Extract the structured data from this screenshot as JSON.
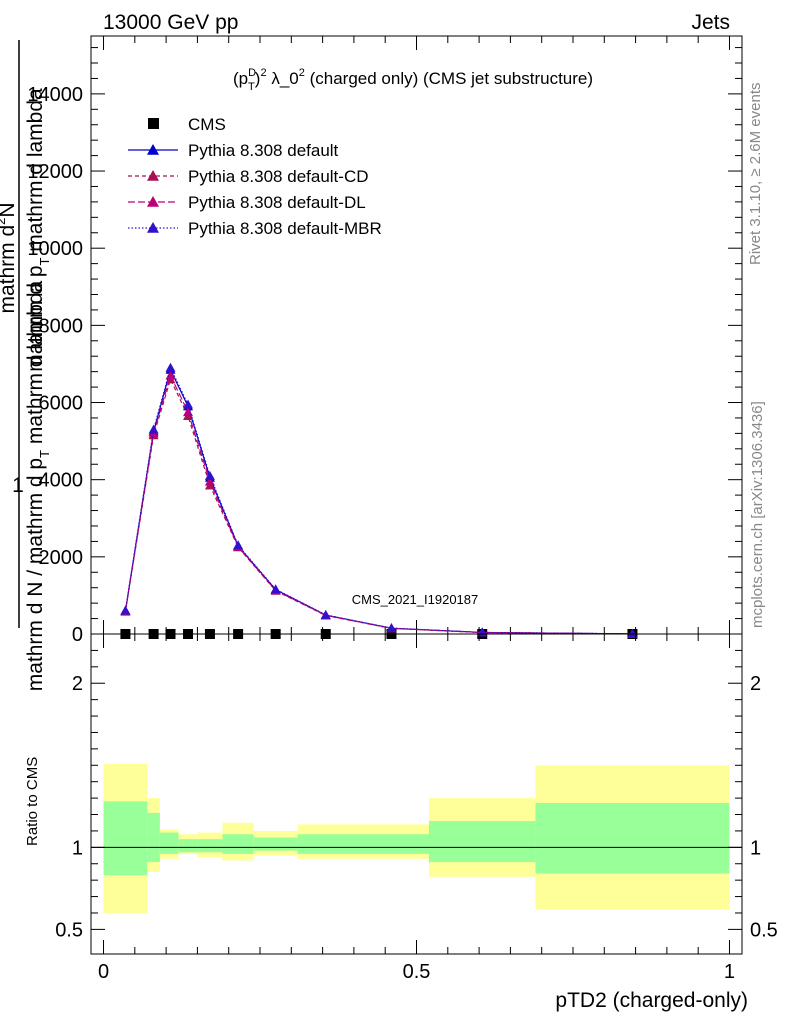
{
  "header": {
    "left": "13000 GeV pp",
    "right": "Jets"
  },
  "title": {
    "prefix": "(p",
    "sup_d": "D",
    "sub_t": "T",
    "sup_2": "2",
    "rest": "λ_0",
    "sup_2b": "2",
    "suffix": "(charged only) (CMS jet substructure)"
  },
  "ylabel": {
    "one": "1",
    "left_line": "mathrm d N / mathrm d p_T mathrm d lambda",
    "right_line": "mathrm d^2N / mathrm d p_T mathrm d lambda",
    "right_line_pre": "mathrm d",
    "right_line_sup": "2",
    "right_line_post": "N",
    "right_line2": "mathrm d p_T mathrm d lambda",
    "line_a": "mathrm d",
    "line_a_sup": "2",
    "line_a_post": "N",
    "line_b": "mathrm d p",
    "line_b_sub": "T",
    "line_b_post": " mathrm d lambda",
    "left_full": "mathrm d N / mathrm d p",
    "left_full_sub": "T",
    "left_full_post": " mathrm d lambda"
  },
  "watermark": "CMS_2021_I1920187",
  "side_labels": {
    "rivet": "Rivet 3.1.10, ≥ 2.6M events",
    "mcplots": "mcplots.cern.ch [arXiv:1306.3436]"
  },
  "ratio_ylabel": "Ratio to CMS",
  "xlabel": "pTD2 (charged-only)",
  "colors": {
    "default": "#0000cc",
    "cd": "#aa1155",
    "dl": "#bb0077",
    "mbr": "#3311cc",
    "band_inner": "#99ff99",
    "band_outer": "#ffff99"
  },
  "chart_data": {
    "type": "line",
    "x": [
      0.035,
      0.08,
      0.107,
      0.135,
      0.17,
      0.215,
      0.275,
      0.355,
      0.46,
      0.605,
      0.845
    ],
    "xlim": [
      -0.02,
      1.02
    ],
    "ylim": [
      0,
      15500
    ],
    "ratio_ylim": [
      0.35,
      2.3
    ],
    "x_ticks": [
      "0",
      "0.5",
      "1"
    ],
    "y_ticks": [
      "0",
      "2000",
      "4000",
      "6000",
      "8000",
      "10000",
      "12000",
      "14000"
    ],
    "ratio_ticks": [
      "0.5",
      "1",
      "2"
    ],
    "series": [
      {
        "name": "CMS",
        "values": [
          0,
          0,
          0,
          0,
          0,
          0,
          0,
          0,
          0,
          0,
          0
        ]
      },
      {
        "name": "Pythia 8.308 default",
        "values": [
          600,
          5250,
          6850,
          5900,
          4050,
          2280,
          1150,
          490,
          150,
          40,
          3
        ]
      },
      {
        "name": "Pythia 8.308 default-CD",
        "values": [
          580,
          5150,
          6600,
          5650,
          3850,
          2250,
          1120,
          480,
          145,
          38,
          3
        ]
      },
      {
        "name": "Pythia 8.308 default-DL",
        "values": [
          590,
          5200,
          6700,
          5750,
          3950,
          2260,
          1130,
          485,
          148,
          39,
          3
        ]
      },
      {
        "name": "Pythia 8.308 default-MBR",
        "values": [
          610,
          5300,
          6900,
          5950,
          4100,
          2300,
          1160,
          495,
          152,
          41,
          3
        ]
      }
    ],
    "ratio_bands": {
      "edges": [
        0.0,
        0.07,
        0.09,
        0.12,
        0.15,
        0.19,
        0.24,
        0.31,
        0.52,
        0.69,
        1.0
      ],
      "inner_lo": [
        0.83,
        0.91,
        0.96,
        0.97,
        0.97,
        0.96,
        0.98,
        0.96,
        0.91,
        0.84
      ],
      "inner_hi": [
        1.28,
        1.21,
        1.09,
        1.05,
        1.05,
        1.08,
        1.06,
        1.08,
        1.16,
        1.27
      ],
      "outer_lo": [
        0.6,
        0.85,
        0.93,
        0.96,
        0.94,
        0.92,
        0.95,
        0.93,
        0.82,
        0.62
      ],
      "outer_hi": [
        1.51,
        1.3,
        1.11,
        1.08,
        1.09,
        1.15,
        1.1,
        1.14,
        1.3,
        1.5
      ]
    }
  }
}
